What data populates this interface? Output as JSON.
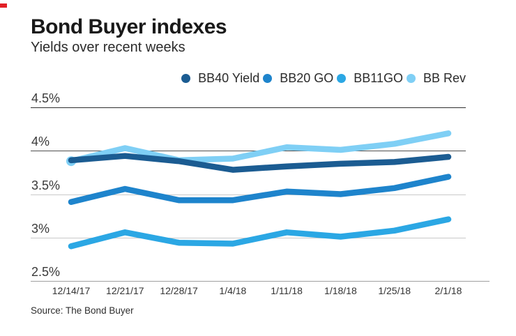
{
  "brand": {
    "accent_color": "#e21f26"
  },
  "chart_data": {
    "type": "line",
    "title": "Bond Buyer indexes",
    "subtitle": "Yields over recent weeks",
    "categories": [
      "12/14/17",
      "12/21/17",
      "12/28/17",
      "1/4/18",
      "1/11/18",
      "1/18/18",
      "1/25/18",
      "2/1/18"
    ],
    "series": [
      {
        "name": "BB40 Yield",
        "color": "#1b5c92",
        "values": [
          3.89,
          3.94,
          3.88,
          3.78,
          3.82,
          3.85,
          3.87,
          3.93
        ]
      },
      {
        "name": "BB20 GO",
        "color": "#1e84cc",
        "values": [
          3.41,
          3.56,
          3.43,
          3.43,
          3.53,
          3.5,
          3.57,
          3.7
        ]
      },
      {
        "name": "BB11GO",
        "color": "#2ba7e4",
        "values": [
          2.9,
          3.06,
          2.94,
          2.93,
          3.06,
          3.01,
          3.08,
          3.21
        ]
      },
      {
        "name": "BB Rev",
        "color": "#7fcff5",
        "values": [
          3.88,
          4.03,
          3.89,
          3.91,
          4.04,
          4.01,
          4.08,
          4.2
        ]
      }
    ],
    "xlabel": "",
    "ylabel": "",
    "ylim": [
      2.5,
      4.5
    ],
    "yticks": [
      4.5,
      4.0,
      3.5,
      3.0,
      2.5
    ],
    "ytick_labels": [
      "4.5%",
      "4%",
      "3.5%",
      "3%",
      "2.5%"
    ],
    "grid_line_colors": [
      "#2f2f2f",
      "#4f4f4f",
      "#c9c9c9",
      "#c9c9c9",
      "#a0a0a0"
    ],
    "grid": "horizontal",
    "legend_position": "top-right"
  },
  "footer": {
    "source": "Source: The Bond Buyer"
  }
}
